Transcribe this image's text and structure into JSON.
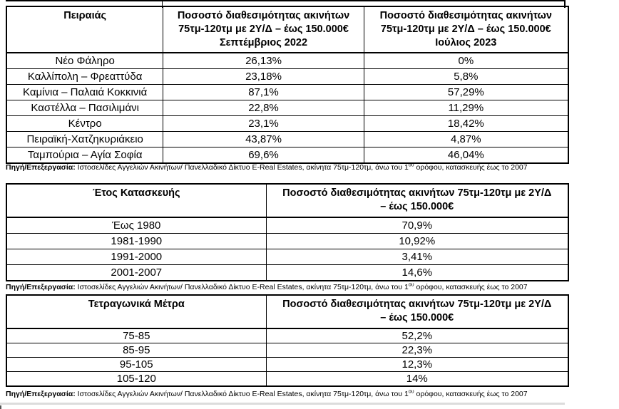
{
  "source_note": {
    "label": "Πηγή/Επεξεργασία:",
    "text_pre": " Ιστοσελίδες Αγγελιών Ακινήτων/ Πανελλαδικό Δίκτυο E-Real Estates, ακίνητα 75τμ-120τμ,  άνω του 1",
    "sup": "ου",
    "text_post": " ορόφου, κατασκευής έως το 2007"
  },
  "table1": {
    "region_header": "Πειραιάς",
    "col_title_line1": "Ποσοστό διαθεσιμότητας ακινήτων",
    "col_title_line2": "75τμ-120τμ με 2Υ/Δ – έως 150.000€",
    "period_2022": "Σεπτέμβριος 2022",
    "period_2023": "Ιούλιος 2023",
    "rows": [
      {
        "area": "Νέο Φάληρο",
        "sep2022": "26,13%",
        "jul2023": "0%"
      },
      {
        "area": "Καλλίπολη – Φρεαττύδα",
        "sep2022": "23,18%",
        "jul2023": "5,8%"
      },
      {
        "area": "Καμίνια – Παλαιά Κοκκινιά",
        "sep2022": "87,1%",
        "jul2023": "57,29%"
      },
      {
        "area": "Καστέλλα – Πασιλιμάνι",
        "sep2022": "22,8%",
        "jul2023": "11,29%"
      },
      {
        "area": "Κέντρο",
        "sep2022": "23,1%",
        "jul2023": "18,42%"
      },
      {
        "area": "Πειραϊκή-Χατζηκυριάκειο",
        "sep2022": "43,87%",
        "jul2023": "4,87%"
      },
      {
        "area": "Ταμπούρια – Αγία Σοφία",
        "sep2022": "69,6%",
        "jul2023": "46,04%"
      }
    ]
  },
  "table2": {
    "col1_header": "Έτος Κατασκευής",
    "col2_header_line1": "Ποσοστό διαθεσιμότητας ακινήτων 75τμ-120τμ με 2Υ/Δ",
    "col2_header_line2": "– έως 150.000€",
    "rows": [
      {
        "label": "Έως 1980",
        "value": "70,9%"
      },
      {
        "label": "1981-1990",
        "value": "10,92%"
      },
      {
        "label": "1991-2000",
        "value": "3,41%"
      },
      {
        "label": "2001-2007",
        "value": "14,6%"
      }
    ]
  },
  "table3": {
    "col1_header": "Τετραγωνικά Μέτρα",
    "col2_header_line1": "Ποσοστό διαθεσιμότητας ακινήτων 75τμ-120τμ με 2Υ/Δ",
    "col2_header_line2": "– έως 150.000€",
    "rows": [
      {
        "label": "75-85",
        "value": "52,2%"
      },
      {
        "label": "85-95",
        "value": "22,3%"
      },
      {
        "label": "95-105",
        "value": "12,3%"
      },
      {
        "label": "105-120",
        "value": "14%"
      }
    ]
  }
}
